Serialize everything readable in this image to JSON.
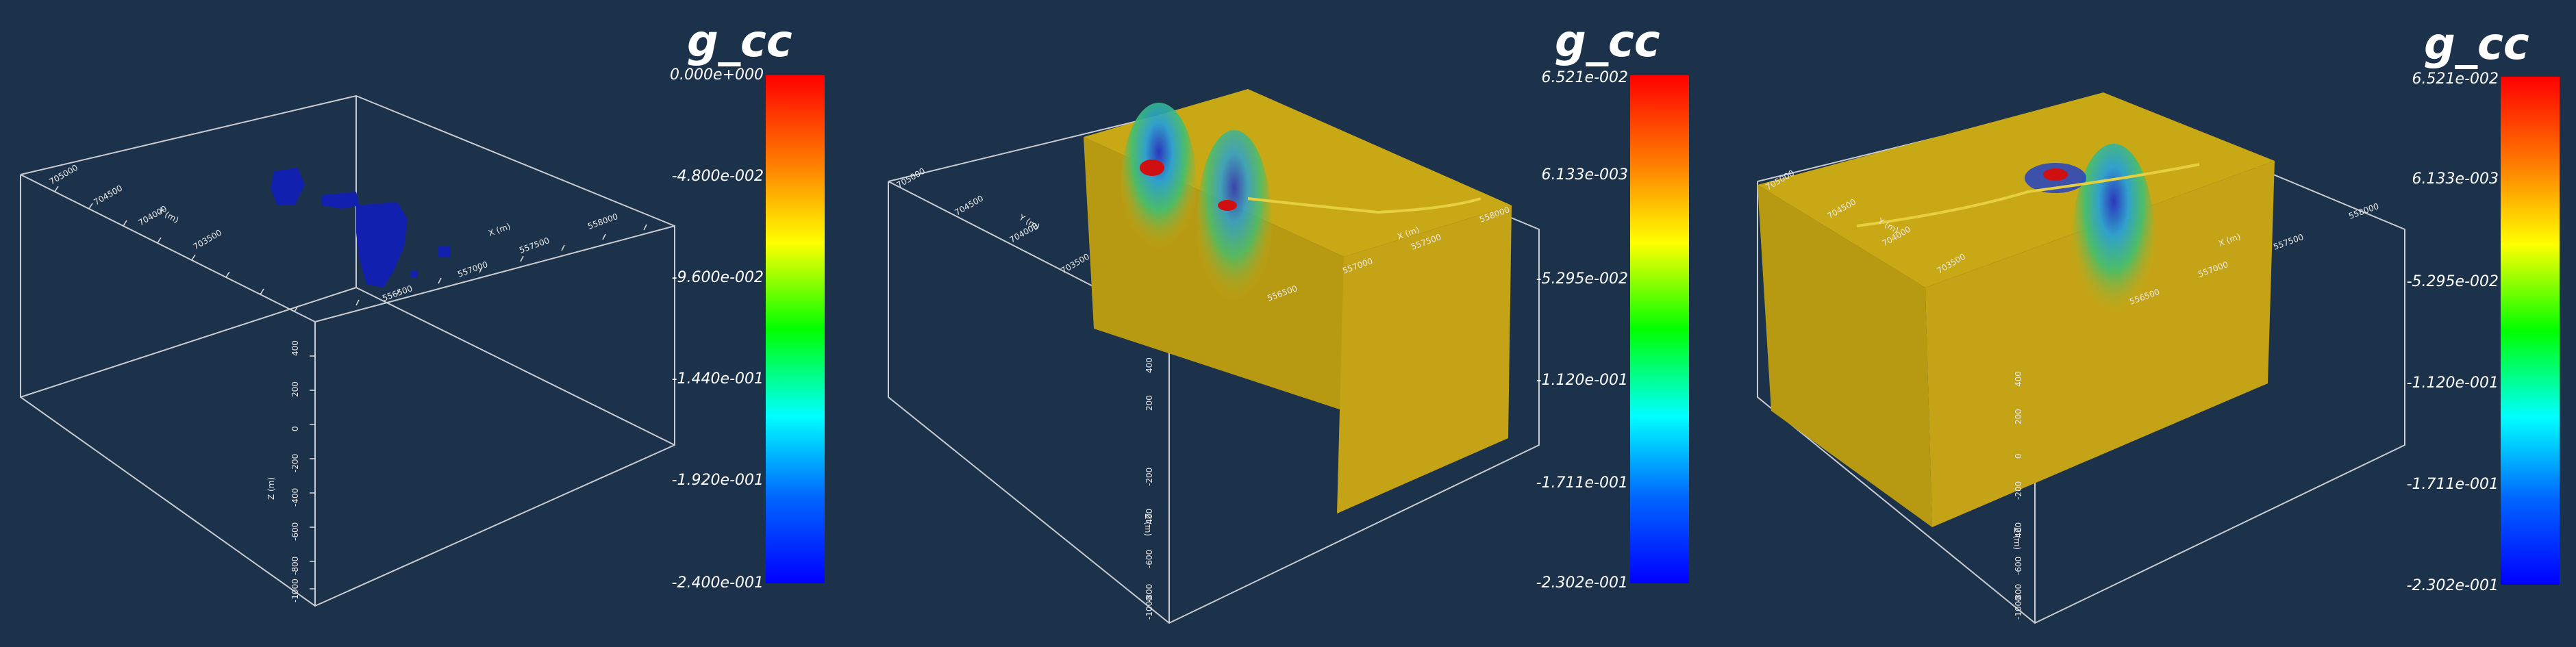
{
  "panels": [
    {
      "id": "panel-1",
      "colorbar": {
        "title": "g_cc",
        "ticks": [
          "0.000e+000",
          "-4.800e-002",
          "-9.600e-002",
          "-1.440e-001",
          "-1.920e-001",
          "-2.400e-001"
        ]
      },
      "axes": {
        "x_title": "X (m)",
        "y_title": "Y (m)",
        "z_title": "Z (m)",
        "x_ticks": [
          "556500",
          "557000",
          "557500",
          "558000"
        ],
        "y_ticks": [
          "703500",
          "704000",
          "704500",
          "705000"
        ],
        "z_ticks": [
          "400",
          "200",
          "0",
          "-200",
          "-400",
          "-600",
          "-800",
          "-1000"
        ]
      }
    },
    {
      "id": "panel-2",
      "colorbar": {
        "title": "g_cc",
        "ticks": [
          "6.521e-002",
          "6.133e-003",
          "-5.295e-002",
          "-1.120e-001",
          "-1.711e-001",
          "-2.302e-001"
        ]
      },
      "axes": {
        "x_title": "X (m)",
        "y_title": "Y (m)",
        "z_title": "Z (m)",
        "x_ticks": [
          "556500",
          "557000",
          "557500",
          "558000"
        ],
        "y_ticks": [
          "703500",
          "704000",
          "704500",
          "705000"
        ],
        "z_ticks": [
          "400",
          "200",
          "0",
          "-200",
          "-400",
          "-600",
          "-800",
          "-1000"
        ]
      }
    },
    {
      "id": "panel-3",
      "colorbar": {
        "title": "g_cc",
        "ticks": [
          "6.521e-002",
          "6.133e-003",
          "-5.295e-002",
          "-1.120e-001",
          "-1.711e-001",
          "-2.302e-001"
        ]
      },
      "axes": {
        "x_title": "X (m)",
        "y_title": "Y (m)",
        "z_title": "Z (m)",
        "x_ticks": [
          "556500",
          "557000",
          "557500",
          "558000"
        ],
        "y_ticks": [
          "703500",
          "704000",
          "704500",
          "705000"
        ],
        "z_ticks": [
          "400",
          "200",
          "0",
          "-200",
          "-400",
          "-600",
          "-800",
          "-1000"
        ]
      }
    }
  ],
  "colors": {
    "background": "#1c324b",
    "box_lines": "#c8ccd2",
    "volume": "#c8a814",
    "anomaly": "#1220b0"
  }
}
